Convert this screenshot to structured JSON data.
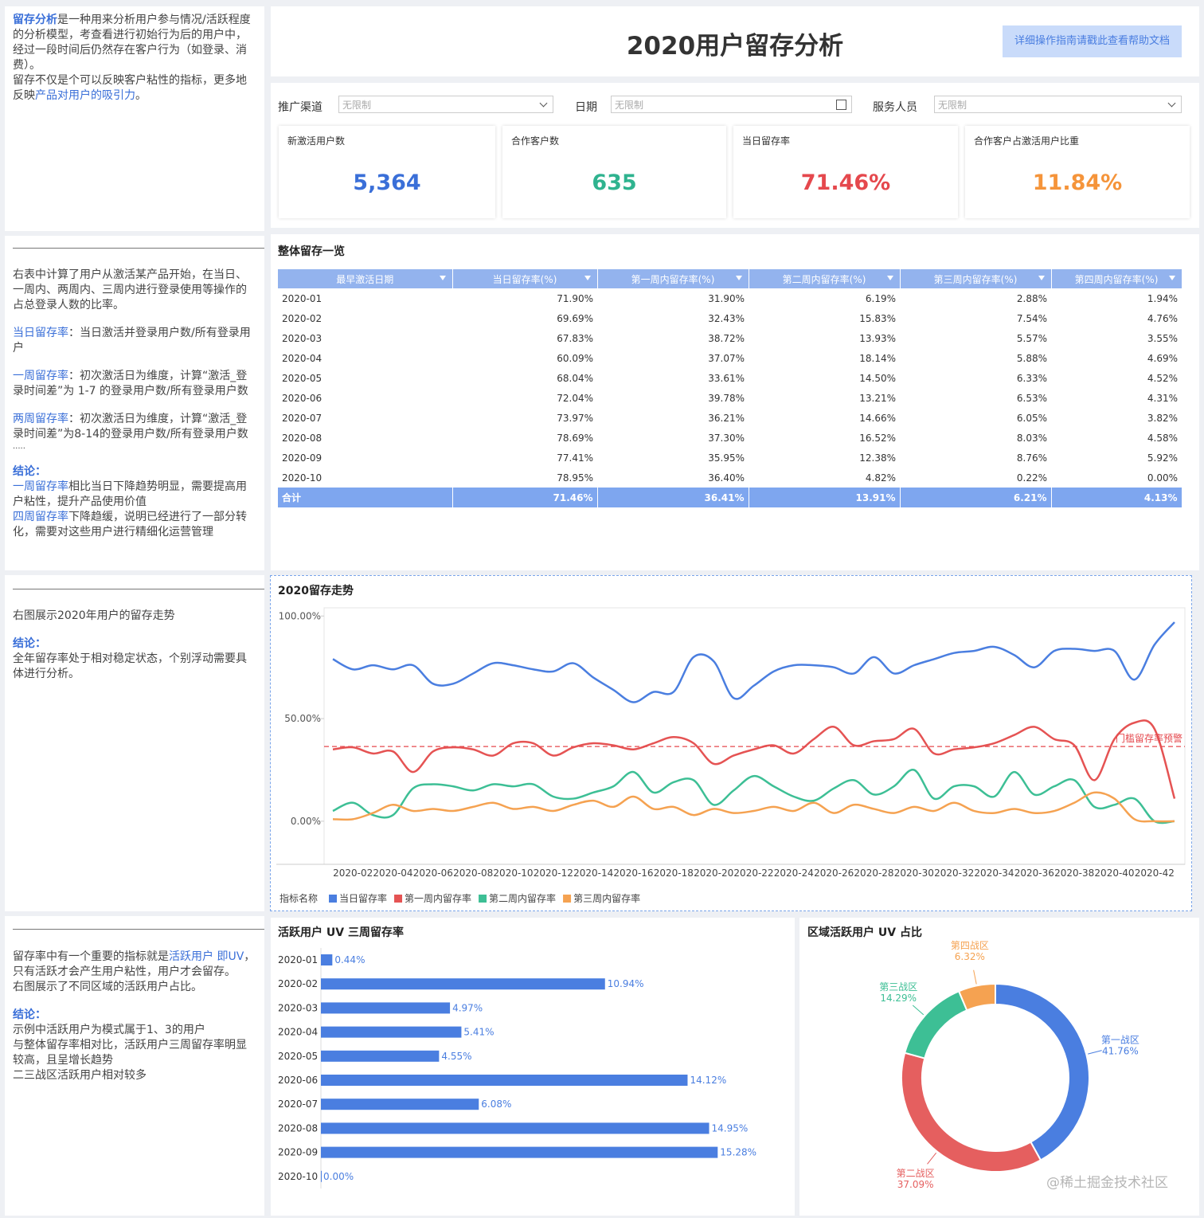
{
  "header": {
    "title": "2020用户留存分析",
    "help_button": "详细操作指南请戳此查看帮助文档"
  },
  "filters": [
    {
      "label": "推广渠道",
      "value": "无限制"
    },
    {
      "label": "日期",
      "value": "无限制"
    },
    {
      "label": "服务人员",
      "value": "无限制"
    }
  ],
  "kpis": [
    {
      "label": "新激活用户数",
      "value": "5,364",
      "color": "#3a6fd8"
    },
    {
      "label": "合作客户数",
      "value": "635",
      "color": "#2fb38f"
    },
    {
      "label": "当日留存率",
      "value": "71.46%",
      "color": "#e5484d"
    },
    {
      "label": "合作客户占激活用户比重",
      "value": "11.84%",
      "color": "#f5943a"
    }
  ],
  "notes": [
    [
      [
        "留存分析",
        "是一种用来分析用户参与情况/活跃程度的分析模型，考查看进行初始行为后的用户中，经过一段时间后仍然存在客户行为（如登录、消费）。"
      ],
      [
        "留存不仅是个可以反映客户粘性的指标，更多地反映",
        "产品对用户的吸引力",
        "。"
      ]
    ],
    [
      [
        "右表中计算了用户从激活某产品开始，在当日、一周内、两周内、三周内进行登录使用等操作的占总登录人数的比率。"
      ],
      [
        "当日留存率",
        "：当日激活并登录用户数/所有登录用户"
      ],
      [
        "一周留存率",
        "：初次激活日为维度，计算“激活_登录时间差”为 1-7 的登录用户数/所有登录用户数"
      ],
      [
        "两周留存率",
        "：初次激活日为维度，计算“激活_登录时间差”为8-14的登录用户数/所有登录用户数"
      ],
      [
        "....."
      ],
      [
        "结论："
      ],
      [
        "一周留存率",
        "相比当日下降趋势明显，需要提高用户粘性，提升产品使用价值"
      ],
      [
        "四周留存率",
        "下降趋缓，说明已经进行了一部分转化，需要对这些用户进行精细化运营管理"
      ]
    ],
    [
      [
        "右图展示2020年用户的留存走势"
      ],
      [
        "结论："
      ],
      [
        "全年留存率处于相对稳定状态，个别浮动需要具体进行分析。"
      ]
    ],
    [
      [
        "留存率中有一个重要的指标就是",
        "活跃用户 即UV",
        "，只有活跃才会产生用户粘性，用户才会留存。"
      ],
      [
        "右图展示了不同区域的活跃用户占比。"
      ],
      [
        "结论："
      ],
      [
        "示例中活跃用户为模式属于1、3的用户"
      ],
      [
        "与整体留存率相对比，活跃用户三周留存率明显较高，且呈增长趋势"
      ],
      [
        "二三战区活跃用户相对较多"
      ]
    ]
  ],
  "table": {
    "title": "整体留存一览",
    "columns": [
      "最早激活日期",
      "当日留存率(%)",
      "第一周内留存率(%)",
      "第二周内留存率(%)",
      "第三周内留存率(%)",
      "第四周内留存率(%)"
    ],
    "rows": [
      [
        "2020-01",
        "71.90%",
        "31.90%",
        "6.19%",
        "2.88%",
        "1.94%"
      ],
      [
        "2020-02",
        "69.69%",
        "32.43%",
        "15.83%",
        "7.54%",
        "4.76%"
      ],
      [
        "2020-03",
        "67.83%",
        "38.72%",
        "13.93%",
        "5.57%",
        "3.55%"
      ],
      [
        "2020-04",
        "60.09%",
        "37.07%",
        "18.14%",
        "5.88%",
        "4.69%"
      ],
      [
        "2020-05",
        "68.04%",
        "33.61%",
        "14.50%",
        "6.33%",
        "4.52%"
      ],
      [
        "2020-06",
        "72.04%",
        "39.78%",
        "13.21%",
        "6.53%",
        "4.31%"
      ],
      [
        "2020-07",
        "73.97%",
        "36.21%",
        "14.66%",
        "6.05%",
        "3.82%"
      ],
      [
        "2020-08",
        "78.69%",
        "37.30%",
        "16.52%",
        "8.03%",
        "4.58%"
      ],
      [
        "2020-09",
        "77.41%",
        "35.95%",
        "12.38%",
        "8.76%",
        "5.92%"
      ],
      [
        "2020-10",
        "78.95%",
        "36.40%",
        "4.82%",
        "0.22%",
        "0.00%"
      ]
    ],
    "total": [
      "合计",
      "71.46%",
      "36.41%",
      "13.91%",
      "6.21%",
      "4.13%"
    ]
  },
  "watermark": "@稀土掘金技术社区",
  "chart_data": [
    {
      "type": "line",
      "title": "2020留存走势",
      "categories": [
        null,
        "2020-02",
        null,
        "2020-04",
        null,
        "2020-06",
        null,
        "2020-08",
        null,
        "2020-10",
        null,
        "2020-12",
        null,
        "2020-14",
        null,
        "2020-16",
        null,
        "2020-18",
        null,
        "2020-20",
        null,
        "2020-22",
        null,
        "2020-24",
        null,
        "2020-26",
        null,
        "2020-28",
        null,
        "2020-30",
        null,
        "2020-32",
        null,
        "2020-34",
        null,
        "2020-36",
        null,
        "2020-38",
        null,
        "2020-40",
        null,
        "2020-42",
        null
      ],
      "series": [
        {
          "name": "当日留存率",
          "color": "#4a7ee0",
          "values": [
            79,
            74,
            76,
            74,
            76,
            67,
            67,
            72,
            77,
            76,
            74,
            73,
            77,
            70,
            64,
            58,
            63,
            63,
            80,
            78,
            60,
            66,
            73,
            76,
            76,
            75,
            72,
            80,
            72,
            76,
            79,
            82,
            83,
            85,
            81,
            75,
            83,
            84,
            83,
            83,
            69,
            86,
            97
          ]
        },
        {
          "name": "第一周内留存率",
          "color": "#e55353",
          "values": [
            35,
            36,
            33,
            34,
            24,
            34,
            36,
            35,
            32,
            38,
            38,
            32,
            36,
            38,
            37,
            35,
            38,
            41,
            38,
            28,
            32,
            35,
            37,
            33,
            40,
            46,
            37,
            39,
            40,
            45,
            33,
            35,
            36,
            38,
            42,
            46,
            40,
            37,
            20,
            40,
            48,
            45,
            11
          ]
        },
        {
          "name": "第二周内留存率",
          "color": "#3dbf95",
          "values": [
            5,
            9,
            3,
            3,
            16,
            18,
            17,
            15,
            18,
            17,
            18,
            12,
            11,
            14,
            17,
            24,
            14,
            19,
            20,
            8,
            15,
            22,
            17,
            12,
            10,
            16,
            20,
            13,
            17,
            25,
            11,
            17,
            17,
            12,
            24,
            13,
            17,
            20,
            7,
            8,
            11,
            0,
            0
          ]
        },
        {
          "name": "第三周内留存率",
          "color": "#f5a251",
          "values": [
            1,
            1,
            4,
            8,
            5,
            6,
            5,
            7,
            9,
            6,
            7,
            5,
            8,
            10,
            7,
            12,
            6,
            7,
            3,
            6,
            4,
            5,
            7,
            5,
            9,
            4,
            8,
            6,
            4,
            7,
            5,
            9,
            5,
            4,
            6,
            4,
            5,
            9,
            14,
            11,
            1,
            0,
            0
          ]
        }
      ],
      "ylim": [
        -21,
        104
      ],
      "yticks": [
        {
          "value": 0,
          "label": "0.00%"
        },
        {
          "value": 50,
          "label": "50.00%"
        },
        {
          "value": 100,
          "label": "100.00%"
        }
      ],
      "threshold": {
        "value": 36.41,
        "label": "门槛留存率预警",
        "color": "#e5484d"
      },
      "legend_title": "指标名称"
    },
    {
      "type": "hbar",
      "title": "活跃用户 UV 三周留存率",
      "categories": [
        "2020-01",
        "2020-02",
        "2020-03",
        "2020-04",
        "2020-05",
        "2020-06",
        "2020-07",
        "2020-08",
        "2020-09",
        "2020-10"
      ],
      "values": [
        0.44,
        10.94,
        4.97,
        5.41,
        4.55,
        14.12,
        6.08,
        14.95,
        15.28,
        0
      ],
      "value_labels": [
        "0.44%",
        "10.94%",
        "4.97%",
        "5.41%",
        "4.55%",
        "14.12%",
        "6.08%",
        "14.95%",
        "15.28%",
        "0.00%"
      ],
      "color": "#4a7ee0",
      "xlim": [
        0,
        18
      ]
    },
    {
      "type": "donut",
      "title": "区域活跃用户 UV 占比",
      "categories": [
        "第一战区",
        "第二战区",
        "第三战区",
        "第四战区"
      ],
      "values": [
        41.76,
        37.09,
        14.29,
        6.32
      ],
      "value_labels": [
        "41.76%",
        "37.09%",
        "14.29%",
        "6.32%"
      ],
      "colors": [
        "#4a7ee0",
        "#e55f5f",
        "#3dbf95",
        "#f5a251"
      ]
    }
  ]
}
